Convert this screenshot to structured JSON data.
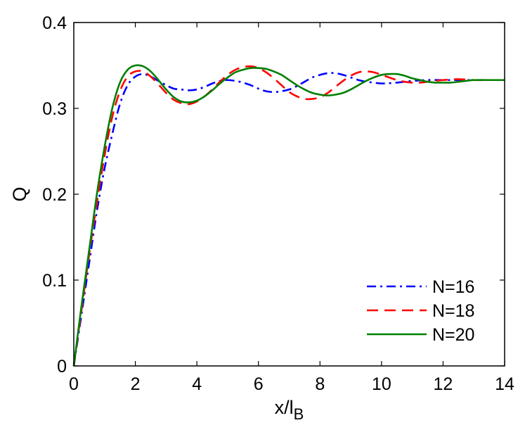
{
  "chart_data": {
    "type": "line",
    "title": "",
    "xlabel": "x/l",
    "xlabel_sub": "B",
    "ylabel": "Q",
    "xlim": [
      0,
      14
    ],
    "ylim": [
      0,
      0.4
    ],
    "xticks": [
      0,
      2,
      4,
      6,
      8,
      10,
      12,
      14
    ],
    "xtick_labels": [
      "0",
      "2",
      "4",
      "6",
      "8",
      "10",
      "12",
      "14"
    ],
    "yticks": [
      0,
      0.1,
      0.2,
      0.3,
      0.4
    ],
    "ytick_labels": [
      "0",
      "0.1",
      "0.2",
      "0.3",
      "0.4"
    ],
    "grid": false,
    "legend_position": "bottom-right",
    "series": [
      {
        "name": "N=16",
        "color": "#0000ff",
        "dash": "dash-dot",
        "x": [
          0,
          0.25,
          0.5,
          0.75,
          1.0,
          1.25,
          1.5,
          1.75,
          2.0,
          2.25,
          2.5,
          2.75,
          3.0,
          3.25,
          3.5,
          3.75,
          4.0,
          4.25,
          4.5,
          4.75,
          5.0,
          5.25,
          5.5,
          5.75,
          6.0,
          6.25,
          6.5,
          6.75,
          7.0,
          7.25,
          7.5,
          7.75,
          8.0,
          8.25,
          8.5,
          8.75,
          9.0,
          9.25,
          9.5,
          9.75,
          10.0,
          10.5,
          11.0,
          11.5,
          12.0,
          12.5,
          13.0,
          13.5,
          14.0
        ],
        "y": [
          0.0,
          0.06,
          0.12,
          0.18,
          0.23,
          0.27,
          0.305,
          0.327,
          0.337,
          0.34,
          0.337,
          0.332,
          0.327,
          0.323,
          0.322,
          0.321,
          0.322,
          0.325,
          0.329,
          0.332,
          0.333,
          0.332,
          0.33,
          0.327,
          0.323,
          0.32,
          0.319,
          0.32,
          0.322,
          0.326,
          0.331,
          0.336,
          0.339,
          0.341,
          0.341,
          0.339,
          0.336,
          0.333,
          0.331,
          0.33,
          0.329,
          0.33,
          0.332,
          0.333,
          0.333,
          0.333,
          0.333,
          0.333,
          0.333
        ]
      },
      {
        "name": "N=18",
        "color": "#ff0000",
        "dash": "dash",
        "x": [
          0,
          0.25,
          0.5,
          0.75,
          1.0,
          1.25,
          1.5,
          1.75,
          2.0,
          2.25,
          2.5,
          2.75,
          3.0,
          3.25,
          3.5,
          3.75,
          4.0,
          4.25,
          4.5,
          4.75,
          5.0,
          5.25,
          5.5,
          5.75,
          6.0,
          6.25,
          6.5,
          6.75,
          7.0,
          7.25,
          7.5,
          7.75,
          8.0,
          8.25,
          8.5,
          8.75,
          9.0,
          9.25,
          9.5,
          9.75,
          10.0,
          10.25,
          10.5,
          10.75,
          11.0,
          11.25,
          11.5,
          12.0,
          12.5,
          13.0,
          13.5,
          14.0
        ],
        "y": [
          0.0,
          0.065,
          0.13,
          0.19,
          0.245,
          0.29,
          0.32,
          0.337,
          0.343,
          0.343,
          0.337,
          0.328,
          0.318,
          0.31,
          0.306,
          0.305,
          0.308,
          0.314,
          0.322,
          0.331,
          0.339,
          0.345,
          0.348,
          0.349,
          0.347,
          0.342,
          0.335,
          0.327,
          0.319,
          0.314,
          0.311,
          0.311,
          0.313,
          0.318,
          0.325,
          0.332,
          0.338,
          0.342,
          0.343,
          0.342,
          0.339,
          0.336,
          0.333,
          0.331,
          0.33,
          0.33,
          0.331,
          0.333,
          0.334,
          0.333,
          0.333,
          0.333
        ]
      },
      {
        "name": "N=20",
        "color": "#008000",
        "dash": "solid",
        "x": [
          0,
          0.25,
          0.5,
          0.75,
          1.0,
          1.25,
          1.5,
          1.75,
          2.0,
          2.25,
          2.5,
          2.75,
          3.0,
          3.25,
          3.5,
          3.75,
          4.0,
          4.25,
          4.5,
          4.75,
          5.0,
          5.25,
          5.5,
          5.75,
          6.0,
          6.25,
          6.5,
          6.75,
          7.0,
          7.25,
          7.5,
          7.75,
          8.0,
          8.25,
          8.5,
          8.75,
          9.0,
          9.25,
          9.5,
          9.75,
          10.0,
          10.25,
          10.5,
          10.75,
          11.0,
          11.25,
          11.5,
          11.75,
          12.0,
          12.25,
          12.5,
          12.75,
          13.0,
          13.5,
          14.0
        ],
        "y": [
          0.0,
          0.07,
          0.135,
          0.2,
          0.255,
          0.3,
          0.33,
          0.345,
          0.35,
          0.349,
          0.343,
          0.333,
          0.322,
          0.313,
          0.308,
          0.307,
          0.309,
          0.314,
          0.321,
          0.329,
          0.336,
          0.342,
          0.345,
          0.347,
          0.347,
          0.346,
          0.343,
          0.339,
          0.333,
          0.327,
          0.322,
          0.318,
          0.316,
          0.315,
          0.316,
          0.318,
          0.322,
          0.327,
          0.332,
          0.336,
          0.339,
          0.34,
          0.34,
          0.338,
          0.335,
          0.333,
          0.331,
          0.33,
          0.33,
          0.33,
          0.331,
          0.332,
          0.333,
          0.333,
          0.333
        ]
      }
    ]
  }
}
